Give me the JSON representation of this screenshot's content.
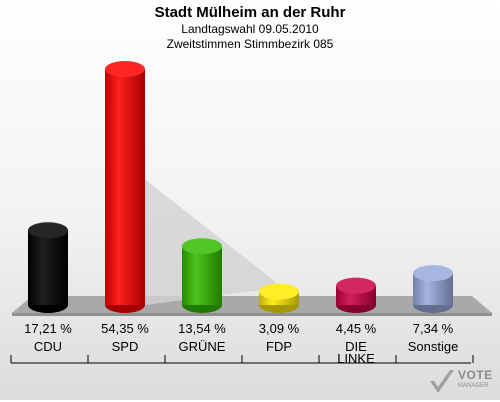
{
  "header": {
    "title": "Stadt Mülheim an der Ruhr",
    "subtitle1": "Landtagswahl 09.05.2010",
    "subtitle2": "Zweitstimmen Stimmbezirk 085"
  },
  "logo": {
    "text": "VOTE",
    "sub": "MANAGER"
  },
  "chart_data": {
    "type": "bar",
    "title": "Stadt Mülheim an der Ruhr",
    "subtitle": [
      "Landtagswahl 09.05.2010",
      "Zweitstimmen Stimmbezirk 085"
    ],
    "categories": [
      "CDU",
      "SPD",
      "GRÜNE",
      "FDP",
      "DIE LINKE",
      "Sonstige"
    ],
    "category_lines": [
      [
        "CDU"
      ],
      [
        "SPD"
      ],
      [
        "GRÜNE"
      ],
      [
        "FDP"
      ],
      [
        "DIE",
        "LINKE"
      ],
      [
        "Sonstige"
      ]
    ],
    "values": [
      17.21,
      54.35,
      13.54,
      3.09,
      4.45,
      7.34
    ],
    "value_labels": [
      "17,21 %",
      "54,35 %",
      "13,54 %",
      "3,09 %",
      "4,45 %",
      "7,34 %"
    ],
    "colors": [
      "#000000",
      "#ff0000",
      "#33bb00",
      "#ffea00",
      "#cc0044",
      "#99aadd"
    ],
    "ylim": [
      0,
      54.35
    ],
    "grid": false,
    "legend": "none"
  }
}
